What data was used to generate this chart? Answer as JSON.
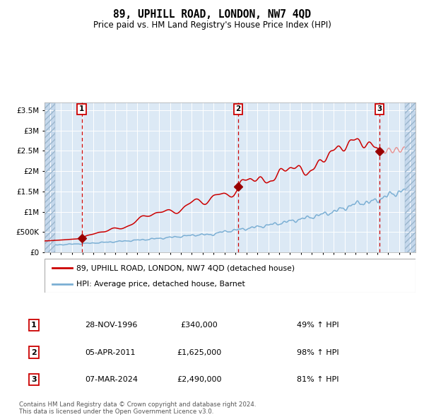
{
  "title": "89, UPHILL ROAD, LONDON, NW7 4QD",
  "subtitle": "Price paid vs. HM Land Registry's House Price Index (HPI)",
  "legend_line1": "89, UPHILL ROAD, LONDON, NW7 4QD (detached house)",
  "legend_line2": "HPI: Average price, detached house, Barnet",
  "footnote1": "Contains HM Land Registry data © Crown copyright and database right 2024.",
  "footnote2": "This data is licensed under the Open Government Licence v3.0.",
  "sales": [
    {
      "label": "1",
      "date": "28-NOV-1996",
      "price": 340000,
      "pct": "49%",
      "year_x": 1996.91
    },
    {
      "label": "2",
      "date": "05-APR-2011",
      "price": 1625000,
      "pct": "98%",
      "year_x": 2011.26
    },
    {
      "label": "3",
      "date": "07-MAR-2024",
      "price": 2490000,
      "pct": "81%",
      "year_x": 2024.18
    }
  ],
  "table_rows": [
    [
      "1",
      "28-NOV-1996",
      "£340,000",
      "49% ↑ HPI"
    ],
    [
      "2",
      "05-APR-2011",
      "£1,625,000",
      "98% ↑ HPI"
    ],
    [
      "3",
      "07-MAR-2024",
      "£2,490,000",
      "81% ↑ HPI"
    ]
  ],
  "ylim": [
    0,
    3700000
  ],
  "xlim_start": 1993.5,
  "xlim_end": 2027.5,
  "hpi_color": "#7bafd4",
  "price_color": "#cc0000",
  "price_faded_color": "#e89090",
  "bg_plot": "#dce9f5",
  "bg_hatch_color": "#c5d8ec",
  "grid_color": "#ffffff",
  "vline_color": "#cc0000",
  "sale_marker_color": "#990000",
  "box_color": "#cc0000",
  "hatch_left_end": 1994.5,
  "hatch_right_start": 2026.5
}
